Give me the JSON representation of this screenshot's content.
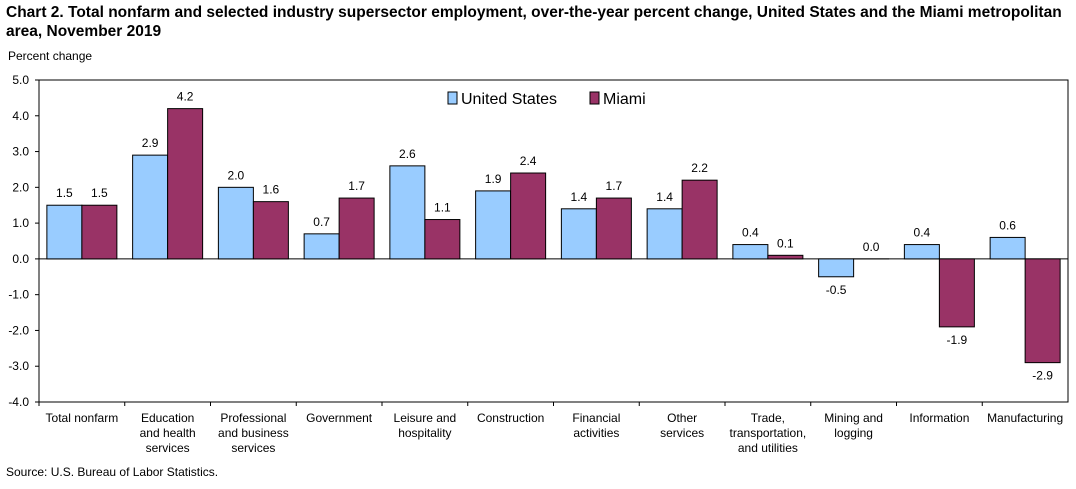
{
  "chart_data": {
    "type": "bar",
    "title": "Chart 2. Total nonfarm and selected industry supersector employment, over-the-year percent change, United States and the Miami metropolitan area, November 2019",
    "ylabel": "Percent change",
    "xlabel": "",
    "ylim": [
      -4.0,
      5.0
    ],
    "yticks": [
      "5.0",
      "4.0",
      "3.0",
      "2.0",
      "1.0",
      "0.0",
      "-1.0",
      "-2.0",
      "-3.0",
      "-4.0"
    ],
    "ytick_values": [
      5,
      4,
      3,
      2,
      1,
      0,
      -1,
      -2,
      -3,
      -4
    ],
    "legend_position": "top-center",
    "categories": [
      [
        "Total nonfarm"
      ],
      [
        "Education",
        "and health",
        "services"
      ],
      [
        "Professional",
        "and business",
        "services"
      ],
      [
        "Government"
      ],
      [
        "Leisure and",
        "hospitality"
      ],
      [
        "Construction"
      ],
      [
        "Financial",
        "activities"
      ],
      [
        "Other",
        "services"
      ],
      [
        "Trade,",
        "transportation,",
        "and utilities"
      ],
      [
        "Mining and",
        "logging"
      ],
      [
        "Information"
      ],
      [
        "Manufacturing"
      ]
    ],
    "series": [
      {
        "name": "United States",
        "color": "#99CCFF",
        "values": [
          1.5,
          2.9,
          2.0,
          0.7,
          2.6,
          1.9,
          1.4,
          1.4,
          0.4,
          -0.5,
          0.4,
          0.6
        ],
        "labels": [
          "1.5",
          "2.9",
          "2.0",
          "0.7",
          "2.6",
          "1.9",
          "1.4",
          "1.4",
          "0.4",
          "-0.5",
          "0.4",
          "0.6"
        ]
      },
      {
        "name": "Miami",
        "color": "#993366",
        "values": [
          1.5,
          4.2,
          1.6,
          1.7,
          1.1,
          2.4,
          1.7,
          2.2,
          0.1,
          0.0,
          -1.9,
          -2.9
        ],
        "labels": [
          "1.5",
          "4.2",
          "1.6",
          "1.7",
          "1.1",
          "2.4",
          "1.7",
          "2.2",
          "0.1",
          "0.0",
          "-1.9",
          "-2.9"
        ]
      }
    ],
    "source": "Source: U.S. Bureau of Labor Statistics."
  }
}
